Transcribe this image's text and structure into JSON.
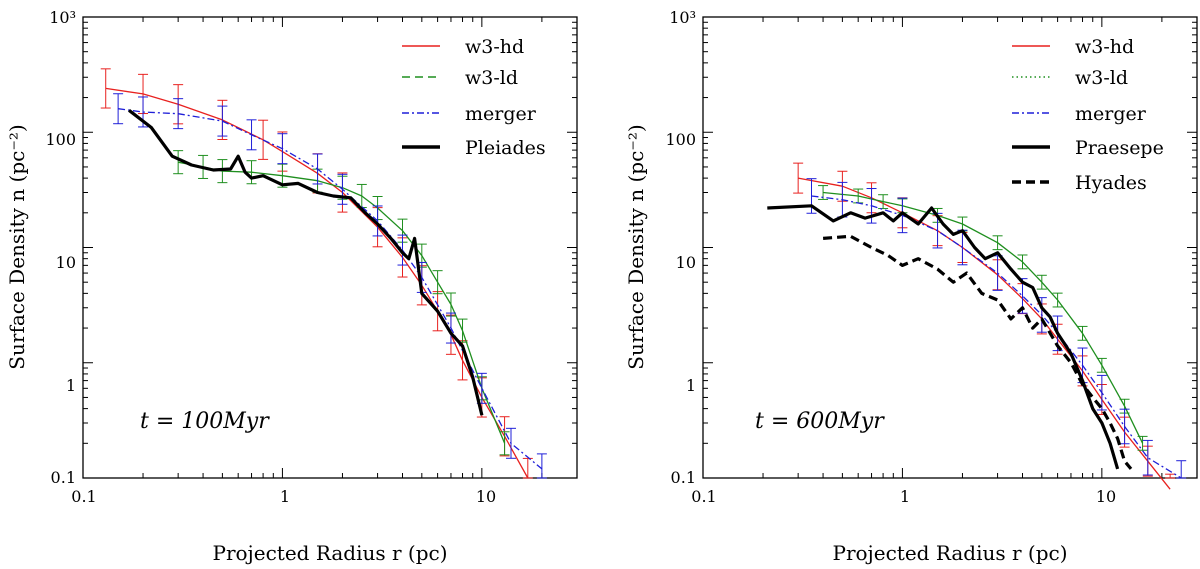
{
  "colors": {
    "hd": "#e8211f",
    "ld": "#1f8f1f",
    "merger": "#1f1fd8",
    "obs": "#000000"
  },
  "chart_data": [
    {
      "type": "line",
      "xscale": "log",
      "yscale": "log",
      "xlim": [
        0.1,
        30
      ],
      "ylim": [
        0.1,
        1000
      ],
      "xlabel": "Projected Radius r (pc)",
      "ylabel": "Surface Density n (pc⁻²)",
      "xticks": [
        {
          "v": 0.1,
          "label": "0.1"
        },
        {
          "v": 1,
          "label": "1"
        },
        {
          "v": 10,
          "label": "10"
        }
      ],
      "yticks": [
        {
          "v": 0.1,
          "label": "0.1"
        },
        {
          "v": 1,
          "label": "1"
        },
        {
          "v": 10,
          "label": "10"
        },
        {
          "v": 100,
          "label": "100"
        },
        {
          "v": 1000,
          "label": "10³"
        }
      ],
      "annotation": "t = 100Myr",
      "legend_position": "top-right",
      "legend": [
        "w3-hd",
        "w3-ld",
        "merger",
        "Pleiades"
      ],
      "series": [
        {
          "name": "w3-hd",
          "style": "hd",
          "x": [
            0.13,
            0.2,
            0.3,
            0.5,
            0.8,
            1.0,
            1.5,
            2.0,
            3.0,
            4.0,
            5.0,
            6.0,
            7.0,
            8.0,
            10.0,
            13.0,
            17.0
          ],
          "y": [
            240,
            215,
            175,
            128,
            86,
            68,
            44,
            30,
            15.0,
            8.2,
            4.7,
            2.8,
            1.75,
            1.05,
            0.5,
            0.23,
            0.1
          ],
          "err": 0.17
        },
        {
          "name": "w3-ld",
          "style": "ld",
          "x": [
            0.3,
            0.4,
            0.5,
            0.7,
            1.0,
            1.5,
            2.0,
            2.5,
            3.0,
            4.0,
            5.0,
            6.0,
            7.0,
            8.0,
            10.0,
            13.0
          ],
          "y": [
            55,
            50,
            46,
            45,
            42,
            38,
            33,
            28,
            22,
            14,
            8.5,
            5.0,
            3.2,
            1.9,
            0.6,
            0.2
          ],
          "err": 0.1
        },
        {
          "name": "merger",
          "style": "merger",
          "x": [
            0.15,
            0.2,
            0.3,
            0.5,
            0.7,
            1.0,
            1.5,
            2.0,
            3.0,
            4.0,
            5.0,
            7.0,
            10.0,
            14.0,
            20.0
          ],
          "y": [
            160,
            150,
            145,
            125,
            95,
            72,
            48,
            32,
            17,
            9.5,
            5.5,
            2.0,
            0.6,
            0.2,
            0.12
          ],
          "err": 0.13
        },
        {
          "name": "Pleiades",
          "style": "obs",
          "x": [
            0.17,
            0.22,
            0.28,
            0.35,
            0.45,
            0.55,
            0.6,
            0.65,
            0.7,
            0.8,
            1.0,
            1.2,
            1.5,
            1.8,
            2.2,
            2.6,
            3.0,
            3.5,
            4.0,
            4.3,
            4.6,
            5.0,
            6.0,
            7.0,
            8.0,
            9.0,
            10.0
          ],
          "y": [
            155,
            110,
            62,
            52,
            47,
            48,
            62,
            45,
            40,
            42,
            35,
            36,
            30,
            28,
            27,
            20,
            16,
            12,
            9,
            8,
            12,
            4,
            2.8,
            1.8,
            1.4,
            0.75,
            0.35
          ]
        }
      ]
    },
    {
      "type": "line",
      "xscale": "log",
      "yscale": "log",
      "xlim": [
        0.1,
        30
      ],
      "ylim": [
        0.1,
        1000
      ],
      "xlabel": "Projected Radius r (pc)",
      "ylabel": "Surface Density n (pc⁻²)",
      "xticks": [
        {
          "v": 0.1,
          "label": "0.1"
        },
        {
          "v": 1,
          "label": "1"
        },
        {
          "v": 10,
          "label": "10"
        }
      ],
      "yticks": [
        {
          "v": 0.1,
          "label": "0.1"
        },
        {
          "v": 1,
          "label": "1"
        },
        {
          "v": 10,
          "label": "10"
        },
        {
          "v": 100,
          "label": "100"
        },
        {
          "v": 1000,
          "label": "10³"
        }
      ],
      "annotation": "t = 600Myr",
      "legend_position": "top-right",
      "legend": [
        "w3-hd",
        "w3-ld",
        "merger",
        "Praesepe",
        "Hyades"
      ],
      "series": [
        {
          "name": "w3-hd",
          "style": "hd",
          "x": [
            0.3,
            0.5,
            0.7,
            1.0,
            1.5,
            2.0,
            3.0,
            4.0,
            5.0,
            6.0,
            8.0,
            10.0,
            13.0,
            17.0,
            22.0
          ],
          "y": [
            40,
            34,
            27,
            20,
            14,
            10,
            5.8,
            3.6,
            2.4,
            1.6,
            0.85,
            0.48,
            0.25,
            0.14,
            0.08
          ],
          "err": 0.13
        },
        {
          "name": "w3-ld",
          "style": "ld",
          "x": [
            0.4,
            0.6,
            0.8,
            1.0,
            1.5,
            2.0,
            3.0,
            4.0,
            5.0,
            6.0,
            8.0,
            10.0,
            13.0,
            16.0
          ],
          "y": [
            30,
            28,
            25,
            23,
            19,
            16,
            11,
            7.5,
            5.0,
            3.5,
            1.8,
            0.95,
            0.42,
            0.2
          ],
          "err": 0.06
        },
        {
          "name": "merger",
          "style": "merger",
          "x": [
            0.35,
            0.5,
            0.7,
            1.0,
            1.5,
            2.0,
            3.0,
            4.0,
            5.0,
            6.0,
            8.0,
            10.0,
            13.0,
            17.0,
            25.0
          ],
          "y": [
            28,
            26,
            23,
            19,
            14,
            10,
            6.0,
            3.8,
            2.6,
            1.8,
            0.95,
            0.55,
            0.28,
            0.15,
            0.1
          ],
          "err": 0.15
        },
        {
          "name": "Praesepe",
          "style": "obs",
          "x": [
            0.21,
            0.35,
            0.45,
            0.55,
            0.65,
            0.8,
            0.9,
            1.0,
            1.2,
            1.4,
            1.6,
            1.8,
            2.0,
            2.3,
            2.6,
            3.0,
            3.5,
            4.0,
            4.5,
            5.0,
            5.5,
            6.0,
            7.0,
            8.0,
            9.0,
            10.0,
            11.0,
            12.0
          ],
          "y": [
            22,
            23,
            17,
            20,
            18,
            20,
            17,
            20,
            16,
            22,
            16,
            13,
            14,
            10,
            8,
            9,
            6.5,
            5,
            4.5,
            3,
            2.5,
            1.8,
            1.2,
            0.7,
            0.4,
            0.3,
            0.2,
            0.12
          ]
        },
        {
          "name": "Hyades",
          "style": "dash",
          "x": [
            0.4,
            0.55,
            0.7,
            0.85,
            1.0,
            1.2,
            1.5,
            1.8,
            2.1,
            2.5,
            3.0,
            3.5,
            4.0,
            4.5,
            5.0,
            6.0,
            7.0,
            8.0,
            9.0,
            10.0,
            11.0,
            12.0,
            13.0,
            14.0
          ],
          "y": [
            12,
            12.5,
            10,
            8.5,
            7,
            8,
            6.5,
            5,
            6,
            4,
            3.5,
            2.4,
            3,
            2,
            2.4,
            1.4,
            1.0,
            0.65,
            0.5,
            0.4,
            0.3,
            0.22,
            0.14,
            0.12
          ]
        }
      ]
    }
  ]
}
